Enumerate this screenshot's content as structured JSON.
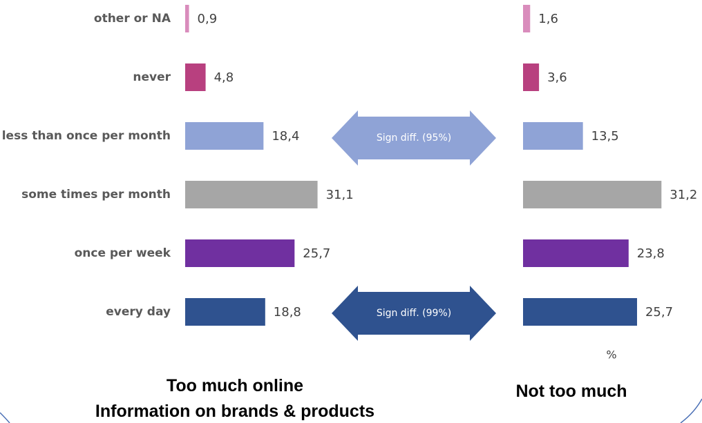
{
  "chart_data": {
    "type": "bar",
    "orientation": "horizontal",
    "categories": [
      "other or NA",
      "never",
      "less than once per month",
      "some times per month",
      "once per week",
      "every day"
    ],
    "colors": [
      "#d98cbc",
      "#b8407f",
      "#8fa3d6",
      "#a6a6a6",
      "#7030a0",
      "#2f528f"
    ],
    "series": [
      {
        "name": "Too much online\nInformation on brands & products",
        "values": [
          0.9,
          4.8,
          18.4,
          31.1,
          25.7,
          18.8
        ],
        "value_labels": [
          "0,9",
          "4,8",
          "18,4",
          "31,1",
          "25,7",
          "18,8"
        ]
      },
      {
        "name": "Not too much",
        "values": [
          1.6,
          3.6,
          13.5,
          31.2,
          23.8,
          25.7
        ],
        "value_labels": [
          "1,6",
          "3,6",
          "13,5",
          "31,2",
          "23,8",
          "25,7"
        ]
      }
    ],
    "annotations": [
      {
        "text": "Sign diff. (95%)",
        "color": "#8fa3d6"
      },
      {
        "text": "Sign diff. (99%)",
        "color": "#2f528f"
      }
    ],
    "unit_label": "%"
  }
}
